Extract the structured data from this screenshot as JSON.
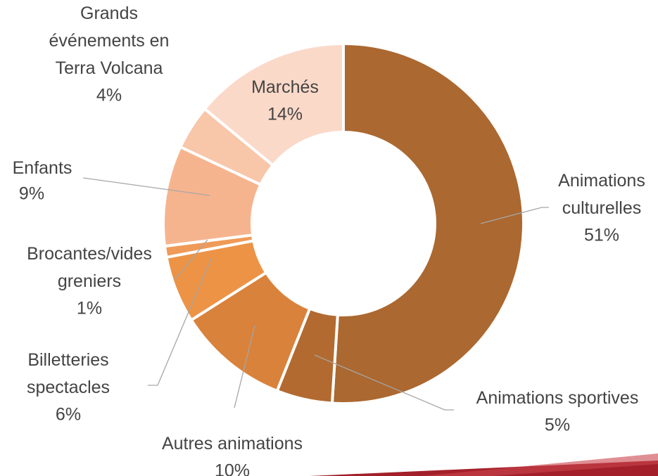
{
  "chart_data": {
    "type": "donut",
    "categories": [
      "Animations culturelles",
      "Animations sportives",
      "Autres animations",
      "Billetteries spectacles",
      "Brocantes/vides greniers",
      "Enfants",
      "Grands événements en Terra Volcana",
      "Marchés"
    ],
    "values": [
      51,
      5,
      10,
      6,
      1,
      9,
      4,
      14
    ],
    "value_labels": [
      "51%",
      "5%",
      "10%",
      "6%",
      "1%",
      "9%",
      "4%",
      "14%"
    ],
    "colors": [
      "#ab6830",
      "#b26a30",
      "#d9823b",
      "#ec9346",
      "#f09a58",
      "#f6b48e",
      "#f8c6a9",
      "#fbd9c9"
    ]
  }
}
